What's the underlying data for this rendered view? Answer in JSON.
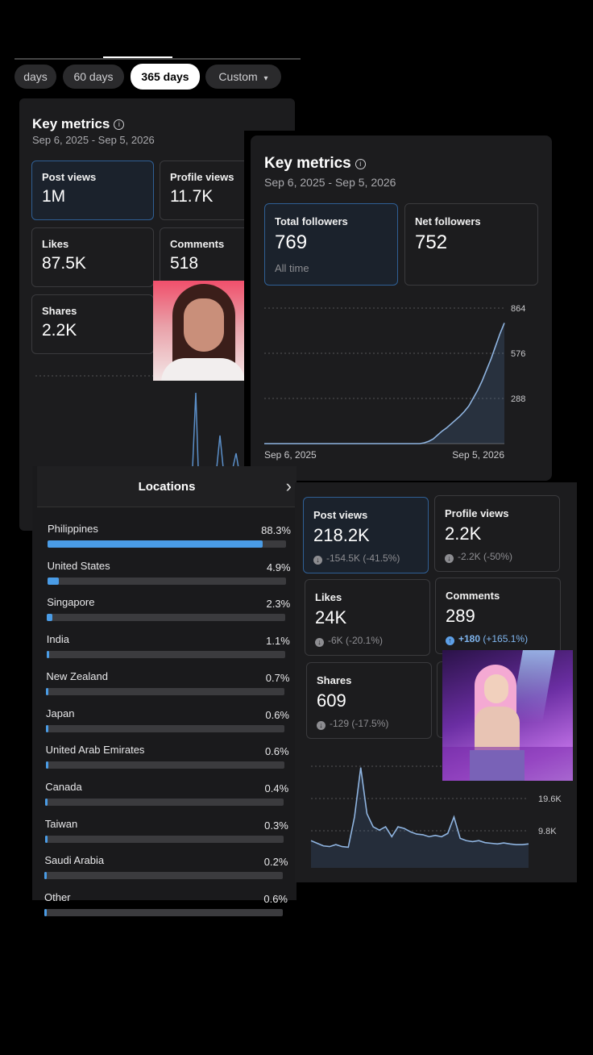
{
  "range_chips": {
    "items": [
      {
        "label": "days",
        "selected": false
      },
      {
        "label": "60 days",
        "selected": false
      },
      {
        "label": "365 days",
        "selected": true
      },
      {
        "label": "Custom",
        "selected": false
      }
    ]
  },
  "left_panel": {
    "title": "Key metrics",
    "date_range": "Sep 6, 2025 - Sep 5, 2026",
    "metrics": [
      {
        "label": "Post views",
        "value": "1M"
      },
      {
        "label": "Profile views",
        "value": "11.7K"
      },
      {
        "label": "Likes",
        "value": "87.5K"
      },
      {
        "label": "Comments",
        "value": "518"
      },
      {
        "label": "Shares",
        "value": "2.2K"
      }
    ]
  },
  "followers_panel": {
    "title": "Key metrics",
    "date_range": "Sep 6, 2025 - Sep 5, 2026",
    "total_followers": {
      "label": "Total followers",
      "value": "769",
      "note": "All time"
    },
    "net_followers": {
      "label": "Net followers",
      "value": "752"
    },
    "chart_data": {
      "type": "area",
      "x_labels": [
        "Sep 6, 2025",
        "Sep 5, 2026"
      ],
      "y_ticks": [
        "864",
        "576",
        "288"
      ],
      "ylim": [
        0,
        864
      ],
      "values": [
        0,
        0,
        0,
        0,
        0,
        0,
        0,
        0,
        0,
        0,
        0,
        0,
        0,
        0,
        0,
        0,
        0,
        0,
        0,
        0,
        0,
        0,
        0,
        0,
        0,
        0,
        0,
        0,
        0,
        0,
        0,
        0,
        0,
        0,
        0,
        0,
        5,
        15,
        30,
        55,
        80,
        100,
        125,
        150,
        175,
        205,
        240,
        290,
        340,
        400,
        470,
        540,
        620,
        700,
        769
      ]
    }
  },
  "locations": {
    "title": "Locations",
    "items": [
      {
        "name": "Philippines",
        "pct": "88.3%",
        "value": 88.3
      },
      {
        "name": "United States",
        "pct": "4.9%",
        "value": 4.9
      },
      {
        "name": "Singapore",
        "pct": "2.3%",
        "value": 2.3
      },
      {
        "name": "India",
        "pct": "1.1%",
        "value": 1.1
      },
      {
        "name": "New Zealand",
        "pct": "0.7%",
        "value": 0.7
      },
      {
        "name": "Japan",
        "pct": "0.6%",
        "value": 0.6
      },
      {
        "name": "United Arab Emirates",
        "pct": "0.6%",
        "value": 0.6
      },
      {
        "name": "Canada",
        "pct": "0.4%",
        "value": 0.4
      },
      {
        "name": "Taiwan",
        "pct": "0.3%",
        "value": 0.3
      },
      {
        "name": "Saudi Arabia",
        "pct": "0.2%",
        "value": 0.2
      },
      {
        "name": "Other",
        "pct": "0.6%",
        "value": 0.6
      }
    ]
  },
  "period_panel": {
    "metrics": [
      {
        "label": "Post views",
        "value": "218.2K",
        "delta": "-154.5K (-41.5%)",
        "direction": "down"
      },
      {
        "label": "Profile views",
        "value": "2.2K",
        "delta": "-2.2K (-50%)",
        "direction": "down"
      },
      {
        "label": "Likes",
        "value": "24K",
        "delta": "-6K (-20.1%)",
        "direction": "down"
      },
      {
        "label": "Comments",
        "value": "289",
        "delta_main": "+180",
        "delta_pct": "(+165.1%)",
        "direction": "up"
      },
      {
        "label": "Shares",
        "value": "609",
        "delta": "-129 (-17.5%)",
        "direction": "down"
      }
    ],
    "chart_data": {
      "type": "area",
      "y_ticks": [
        "19.6K",
        "9.8K"
      ],
      "ylim": [
        0,
        29400
      ],
      "values": [
        6800,
        6000,
        5200,
        5000,
        5600,
        5000,
        4800,
        14000,
        29000,
        15000,
        11000,
        10000,
        11000,
        8000,
        11000,
        10500,
        9500,
        8800,
        8600,
        8000,
        8400,
        8000,
        9000,
        14000,
        7500,
        6800,
        6500,
        6800,
        6200,
        6000,
        5800,
        6100,
        5800,
        5600,
        5600,
        5800
      ]
    }
  },
  "icons": {
    "info": "i",
    "chevron_right": "›",
    "dropdown_caret": "▾",
    "arrow_down": "↓",
    "arrow_up": "↑"
  },
  "colors": {
    "accent_blue": "#4a9ce6",
    "panel_bg": "#1c1c1e",
    "page_bg": "#000000"
  }
}
